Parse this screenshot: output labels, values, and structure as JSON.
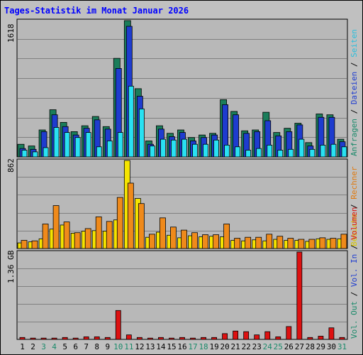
{
  "page": {
    "title": "Tages-Statistik im Monat Januar 2026"
  },
  "colors": {
    "panel_bg": "#c0c0c0",
    "plot_bg": "#b8b8b8",
    "anfragen": "#1a7d5a",
    "dateien": "#1e3ccf",
    "seiten": "#29e1f2",
    "besuche": "#f5e400",
    "rechner": "#ef8a1b",
    "volumen": "#dd1111",
    "weekend_day": "#1a8a6a",
    "weekday": "#000000",
    "separator": "#000000"
  },
  "legend": {
    "top": [
      {
        "label": "Anfragen",
        "color": "#1a8a6a"
      },
      {
        "label": "Dateien",
        "color": "#1e3ccf"
      },
      {
        "label": "Seiten",
        "color": "#29bfdd"
      }
    ],
    "middle": [
      {
        "label": "Besuche",
        "color": "#d9c800"
      },
      {
        "label": "Rechner",
        "color": "#e07a10"
      }
    ],
    "bottom": [
      {
        "label": "Vol. Out",
        "color": "#1a8a6a"
      },
      {
        "label": "Vol. In",
        "color": "#1e3ccf"
      },
      {
        "label": "Volumen",
        "color": "#dd1111"
      }
    ],
    "separator": "/"
  },
  "chart_data": [
    {
      "type": "bar",
      "name": "hits-files-pages",
      "ymax_label": "1618",
      "ylim": [
        0,
        1618
      ],
      "grid": true,
      "categories": [
        "1",
        "2",
        "3",
        "4",
        "5",
        "6",
        "7",
        "8",
        "9",
        "10",
        "11",
        "12",
        "13",
        "14",
        "15",
        "16",
        "17",
        "18",
        "19",
        "20",
        "21",
        "22",
        "23",
        "24",
        "25",
        "26",
        "27",
        "28",
        "29",
        "30",
        "31"
      ],
      "series": [
        {
          "name": "Anfragen",
          "values": [
            150,
            130,
            320,
            560,
            410,
            300,
            370,
            480,
            360,
            1170,
            1618,
            810,
            190,
            370,
            280,
            320,
            230,
            260,
            280,
            680,
            540,
            310,
            320,
            530,
            290,
            340,
            400,
            170,
            510,
            500,
            210
          ]
        },
        {
          "name": "Dateien",
          "values": [
            100,
            90,
            300,
            500,
            360,
            260,
            340,
            440,
            330,
            1050,
            1550,
            720,
            150,
            330,
            240,
            290,
            190,
            230,
            260,
            620,
            500,
            280,
            300,
            430,
            250,
            300,
            380,
            130,
            470,
            470,
            180
          ]
        },
        {
          "name": "Seiten",
          "values": [
            80,
            60,
            110,
            350,
            290,
            230,
            290,
            120,
            190,
            290,
            840,
            570,
            130,
            210,
            200,
            210,
            150,
            150,
            200,
            140,
            120,
            80,
            100,
            140,
            80,
            90,
            210,
            90,
            140,
            150,
            120
          ]
        }
      ]
    },
    {
      "type": "bar",
      "name": "visits-sites",
      "ymax_label": "862",
      "ylim": [
        0,
        862
      ],
      "grid": true,
      "categories": [
        "1",
        "2",
        "3",
        "4",
        "5",
        "6",
        "7",
        "8",
        "9",
        "10",
        "11",
        "12",
        "13",
        "14",
        "15",
        "16",
        "17",
        "18",
        "19",
        "20",
        "21",
        "22",
        "23",
        "24",
        "25",
        "26",
        "27",
        "28",
        "29",
        "30",
        "31"
      ],
      "series": [
        {
          "name": "Besuche",
          "values": [
            55,
            65,
            95,
            190,
            230,
            150,
            170,
            175,
            170,
            280,
            862,
            490,
            110,
            160,
            130,
            105,
            125,
            115,
            120,
            115,
            80,
            75,
            85,
            75,
            90,
            80,
            80,
            70,
            95,
            90,
            95
          ]
        },
        {
          "name": "Rechner",
          "values": [
            80,
            75,
            240,
            420,
            260,
            155,
            195,
            310,
            265,
            500,
            640,
            440,
            140,
            300,
            210,
            180,
            155,
            135,
            135,
            240,
            100,
            110,
            110,
            140,
            120,
            100,
            90,
            90,
            105,
            100,
            140
          ]
        }
      ]
    },
    {
      "type": "bar",
      "name": "volume",
      "ymax_label": "1.36 GB",
      "ylim": [
        0,
        1.36
      ],
      "grid": true,
      "categories": [
        "1",
        "2",
        "3",
        "4",
        "5",
        "6",
        "7",
        "8",
        "9",
        "10",
        "11",
        "12",
        "13",
        "14",
        "15",
        "16",
        "17",
        "18",
        "19",
        "20",
        "21",
        "22",
        "23",
        "24",
        "25",
        "26",
        "27",
        "28",
        "29",
        "30",
        "31"
      ],
      "series": [
        {
          "name": "Volumen",
          "values": [
            0.03,
            0.02,
            0.02,
            0.02,
            0.03,
            0.02,
            0.04,
            0.04,
            0.03,
            0.45,
            0.07,
            0.03,
            0.02,
            0.03,
            0.02,
            0.03,
            0.02,
            0.03,
            0.03,
            0.09,
            0.13,
            0.12,
            0.07,
            0.12,
            0.04,
            0.2,
            1.36,
            0.03,
            0.05,
            0.18,
            0.03
          ]
        }
      ]
    }
  ],
  "weekend_days": [
    "3",
    "4",
    "10",
    "11",
    "17",
    "18",
    "24",
    "25",
    "31"
  ]
}
